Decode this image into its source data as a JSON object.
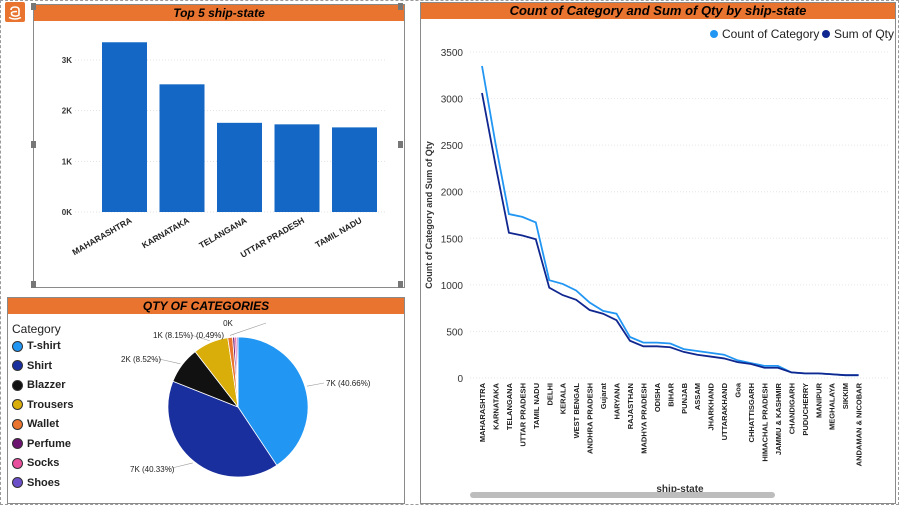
{
  "colors": {
    "accent": "#e8742f",
    "bar": "#1467c4",
    "line_count": "#2196f3",
    "line_qty": "#10278f"
  },
  "logo_icon": "amazon-icon",
  "bar_panel": {
    "title": "Top 5 ship-state"
  },
  "pie_panel": {
    "title": "QTY OF CATEGORIES",
    "legend_title": "Category"
  },
  "line_panel": {
    "title": "Count of Category and Sum of Qty by ship-state",
    "xlabel": "ship-state",
    "ylabel": "Count of Category and Sum of Qty"
  },
  "chart_data": [
    {
      "type": "bar",
      "title": "Top 5 ship-state",
      "categories": [
        "MAHARASHTRA",
        "KARNATAKA",
        "TELANGANA",
        "UTTAR PRADESH",
        "TAMIL NADU"
      ],
      "values": [
        3350,
        2520,
        1760,
        1730,
        1670
      ],
      "yticks": [
        "0K",
        "1K",
        "2K",
        "3K"
      ],
      "ylim": [
        0,
        3600
      ],
      "grid": true
    },
    {
      "type": "pie",
      "title": "QTY OF CATEGORIES",
      "legend_placement": "left",
      "slices": [
        {
          "name": "T-shirt",
          "value": 40.66,
          "label": "7K (40.66%)",
          "color": "#2196f3"
        },
        {
          "name": "Shirt",
          "value": 40.33,
          "label": "7K (40.33%)",
          "color": "#1a2f9e"
        },
        {
          "name": "Blazzer",
          "value": 8.52,
          "label": "2K (8.52%)",
          "color": "#111111"
        },
        {
          "name": "Trousers",
          "value": 8.15,
          "label": "1K (8.15%)",
          "color": "#d9ad0a"
        },
        {
          "name": "Wallet",
          "value": 1.1,
          "label": "0K",
          "color": "#e8742f"
        },
        {
          "name": "Perfume",
          "value": 0.49,
          "label": "(0.49%)",
          "color": "#6b1470"
        },
        {
          "name": "Socks",
          "value": 0.45,
          "label": "",
          "color": "#e84f9c"
        },
        {
          "name": "Shoes",
          "value": 0.3,
          "label": "",
          "color": "#6a4fc9"
        }
      ]
    },
    {
      "type": "line",
      "title": "Count of Category and Sum of Qty by ship-state",
      "xlabel": "ship-state",
      "ylabel": "Count of Category and Sum of Qty",
      "ylim": [
        0,
        3500
      ],
      "yticks": [
        0,
        500,
        1000,
        1500,
        2000,
        2500,
        3000,
        3500
      ],
      "legend_placement": "top-right",
      "grid": true,
      "x": [
        "MAHARASHTRA",
        "KARNATAKA",
        "TELANGANA",
        "UTTAR PRADESH",
        "TAMIL NADU",
        "DELHI",
        "KERALA",
        "WEST BENGAL",
        "ANDHRA PRADESH",
        "Gujarat",
        "HARYANA",
        "RAJASTHAN",
        "MADHYA PRADESH",
        "ODISHA",
        "BIHAR",
        "PUNJAB",
        "ASSAM",
        "JHARKHAND",
        "UTTARAKHAND",
        "Goa",
        "CHHATTISGARH",
        "HIMACHAL PRADESH",
        "JAMMU & KASHMIR",
        "CHANDIGARH",
        "PUDUCHERRY",
        "MANIPUR",
        "MEGHALAYA",
        "SIKKIM",
        "ANDAMAN & NICOBAR"
      ],
      "series": [
        {
          "name": "Count of Category",
          "values": [
            3350,
            2520,
            1760,
            1730,
            1670,
            1050,
            1010,
            940,
            810,
            720,
            690,
            440,
            380,
            380,
            370,
            310,
            290,
            270,
            250,
            190,
            160,
            130,
            130,
            60,
            50,
            50,
            40,
            30,
            30
          ]
        },
        {
          "name": "Sum of Qty",
          "values": [
            3060,
            2290,
            1560,
            1530,
            1490,
            970,
            890,
            840,
            730,
            690,
            620,
            400,
            340,
            340,
            330,
            280,
            250,
            230,
            210,
            170,
            150,
            110,
            110,
            60,
            50,
            50,
            40,
            30,
            30
          ]
        }
      ]
    }
  ]
}
